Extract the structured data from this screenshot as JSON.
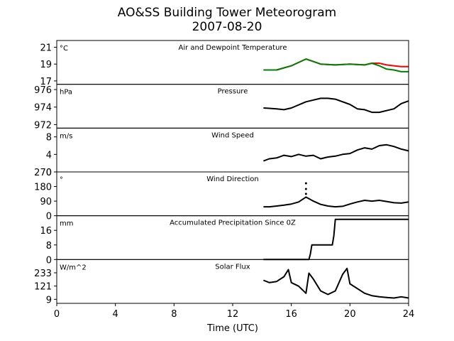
{
  "title": "AO&SS Building Tower Meteorogram",
  "subtitle": "2007-08-20",
  "xlabel": "Time (UTC)",
  "colors": {
    "temperature": "#ff0000",
    "dewpoint": "#008000",
    "line": "#000000"
  },
  "chart_data": {
    "type": "line",
    "xlim": [
      0,
      24
    ],
    "xticks": [
      0,
      4,
      8,
      12,
      16,
      20,
      24
    ],
    "xlabel": "Time (UTC)",
    "panels": [
      {
        "title": "Air and Dewpoint Temperature",
        "unit": "°C",
        "ylim": [
          16.6,
          21.8
        ],
        "yticks": [
          17,
          19,
          21
        ],
        "series": [
          {
            "color": "#ff0000",
            "x": [
              14.1,
              15,
              16,
              17,
              17.5,
              18,
              19,
              20,
              21,
              21.5,
              22,
              22.5,
              23,
              23.5,
              24
            ],
            "y": [
              18.3,
              18.3,
              18.8,
              19.6,
              19.3,
              19.0,
              18.9,
              19.0,
              18.9,
              19.1,
              19.1,
              18.9,
              18.8,
              18.7,
              18.7
            ]
          },
          {
            "color": "#008000",
            "x": [
              14.1,
              15,
              16,
              17,
              17.5,
              18,
              19,
              20,
              21,
              21.5,
              22,
              22.5,
              23,
              23.5,
              24
            ],
            "y": [
              18.3,
              18.3,
              18.8,
              19.6,
              19.3,
              19.0,
              18.9,
              19.0,
              18.9,
              19.1,
              18.8,
              18.4,
              18.3,
              18.1,
              18.1
            ]
          }
        ]
      },
      {
        "title": "Pressure",
        "unit": "hPa",
        "ylim": [
          971.6,
          976.6
        ],
        "yticks": [
          972,
          974,
          976
        ],
        "series": [
          {
            "color": "#000000",
            "x": [
              14.1,
              15,
              15.5,
              16,
              17,
              18,
              18.5,
              19,
              20,
              20.5,
              21,
              21.5,
              22,
              23,
              23.5,
              24
            ],
            "y": [
              973.9,
              973.8,
              973.7,
              973.9,
              974.6,
              975.0,
              975.0,
              974.9,
              974.3,
              973.8,
              973.7,
              973.4,
              973.4,
              973.8,
              974.4,
              974.7
            ]
          }
        ]
      },
      {
        "title": "Wind Speed",
        "unit": "m/s",
        "ylim": [
          0,
          10
        ],
        "yticks": [
          0,
          4,
          8
        ],
        "series": [
          {
            "color": "#000000",
            "x": [
              14.1,
              14.5,
              15,
              15.5,
              16,
              16.5,
              17,
              17.5,
              18,
              18.5,
              19,
              19.5,
              20,
              20.5,
              21,
              21.5,
              22,
              22.5,
              23,
              23.5,
              24
            ],
            "y": [
              2.5,
              3.0,
              3.2,
              3.8,
              3.5,
              4.0,
              3.6,
              3.8,
              3.0,
              3.4,
              3.6,
              4.0,
              4.2,
              5.0,
              5.5,
              5.2,
              6.0,
              6.2,
              5.8,
              5.2,
              4.8
            ]
          }
        ]
      },
      {
        "title": "Wind Direction",
        "unit": "°",
        "ylim": [
          0,
          270
        ],
        "yticks": [
          0,
          90,
          180,
          270
        ],
        "series": [
          {
            "color": "#000000",
            "x": [
              14.1,
              14.5,
              15,
              15.5,
              16,
              16.5,
              17,
              17.5,
              18,
              18.5,
              19,
              19.5,
              20,
              20.5,
              21,
              21.5,
              22,
              22.5,
              23,
              23.5,
              24
            ],
            "y": [
              55,
              55,
              60,
              65,
              72,
              85,
              115,
              90,
              70,
              60,
              55,
              58,
              72,
              85,
              95,
              90,
              95,
              88,
              80,
              78,
              85
            ]
          }
        ],
        "points": {
          "x": [
            17.0,
            17.0,
            17.0
          ],
          "y": [
            200,
            165,
            135
          ]
        }
      },
      {
        "title": "Accumulated Precipitation Since 0Z",
        "unit": "mm",
        "ylim": [
          0,
          24
        ],
        "yticks": [
          0,
          8,
          16
        ],
        "series": [
          {
            "color": "#000000",
            "x": [
              14.1,
              17.2,
              17.3,
              17.4,
              18.8,
              18.9,
              19.0,
              24
            ],
            "y": [
              0,
              0,
              3,
              8,
              8,
              13,
              22,
              22
            ]
          }
        ]
      },
      {
        "title": "Solar Flux",
        "unit": "W/m^2",
        "ylim": [
          -25,
          345
        ],
        "yticks": [
          9,
          121,
          233
        ],
        "series": [
          {
            "color": "#000000",
            "x": [
              14.1,
              14.5,
              15,
              15.5,
              15.8,
              16,
              16.5,
              17,
              17.2,
              17.5,
              18,
              18.5,
              19,
              19.5,
              19.8,
              20,
              20.5,
              21,
              21.5,
              22,
              22.5,
              23,
              23.5,
              24
            ],
            "y": [
              170,
              150,
              160,
              200,
              260,
              150,
              120,
              60,
              230,
              180,
              80,
              50,
              80,
              220,
              270,
              140,
              100,
              60,
              40,
              30,
              25,
              20,
              30,
              20
            ]
          }
        ]
      }
    ]
  }
}
